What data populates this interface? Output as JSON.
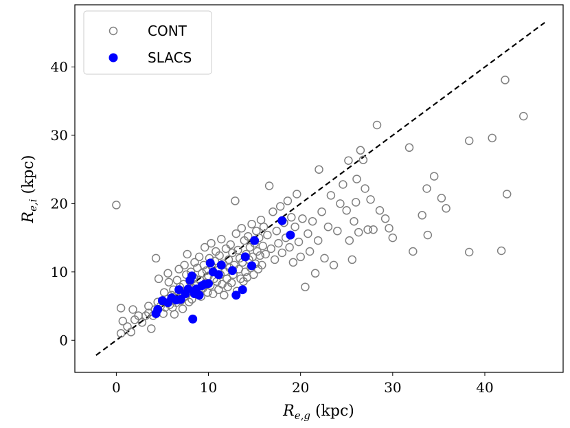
{
  "chart_data": {
    "type": "scatter",
    "xlabel": {
      "symbol": "R",
      "sub": "e,g",
      "unit": " (kpc)"
    },
    "ylabel": {
      "symbol": "R",
      "sub": "e,i",
      "unit": " (kpc)"
    },
    "xlim": [
      -4.5,
      48.5
    ],
    "ylim": [
      -4.7,
      49.1
    ],
    "x_ticks": [
      0,
      10,
      20,
      30,
      40
    ],
    "y_ticks": [
      0,
      10,
      20,
      30,
      40
    ],
    "grid": false,
    "legend": {
      "position": "top-left",
      "entries": [
        {
          "label": "CONT",
          "marker": "open-circle",
          "color": "#808080"
        },
        {
          "label": "SLACS",
          "marker": "filled-circle",
          "color": "#0000ff"
        }
      ]
    },
    "reference_line": {
      "style": "dashed",
      "color": "#000000",
      "x": [
        -2.2,
        46.5
      ],
      "y": [
        -2.2,
        46.5
      ]
    },
    "series": [
      {
        "name": "CONT",
        "color": "#808080",
        "marker": "open-circle",
        "points": [
          [
            0.0,
            19.8
          ],
          [
            0.5,
            1.0
          ],
          [
            0.7,
            2.8
          ],
          [
            0.5,
            4.7
          ],
          [
            1.2,
            2.0
          ],
          [
            1.6,
            1.2
          ],
          [
            1.8,
            4.5
          ],
          [
            2.0,
            3.0
          ],
          [
            2.4,
            3.6
          ],
          [
            2.8,
            2.6
          ],
          [
            3.2,
            3.6
          ],
          [
            3.5,
            4.0
          ],
          [
            3.8,
            1.7
          ],
          [
            3.5,
            5.0
          ],
          [
            4.0,
            3.6
          ],
          [
            4.3,
            12.0
          ],
          [
            4.2,
            4.5
          ],
          [
            4.5,
            5.6
          ],
          [
            4.6,
            9.0
          ],
          [
            4.8,
            5.0
          ],
          [
            5.1,
            3.9
          ],
          [
            5.2,
            7.0
          ],
          [
            5.3,
            4.8
          ],
          [
            5.5,
            6.0
          ],
          [
            5.6,
            9.8
          ],
          [
            5.7,
            8.5
          ],
          [
            5.8,
            5.2
          ],
          [
            6.0,
            6.6
          ],
          [
            6.1,
            4.8
          ],
          [
            6.2,
            7.4
          ],
          [
            6.3,
            3.8
          ],
          [
            6.5,
            5.5
          ],
          [
            6.6,
            8.8
          ],
          [
            6.7,
            6.2
          ],
          [
            6.8,
            10.4
          ],
          [
            6.9,
            7.8
          ],
          [
            7.0,
            5.8
          ],
          [
            7.1,
            6.8
          ],
          [
            7.2,
            4.6
          ],
          [
            7.3,
            8.2
          ],
          [
            7.4,
            11.0
          ],
          [
            7.5,
            6.4
          ],
          [
            7.6,
            9.6
          ],
          [
            7.7,
            12.6
          ],
          [
            7.8,
            7.2
          ],
          [
            7.9,
            5.6
          ],
          [
            8.0,
            8.6
          ],
          [
            8.1,
            10.0
          ],
          [
            8.2,
            6.0
          ],
          [
            8.3,
            7.6
          ],
          [
            8.4,
            9.2
          ],
          [
            8.5,
            11.4
          ],
          [
            8.6,
            6.8
          ],
          [
            8.7,
            8.0
          ],
          [
            8.8,
            10.6
          ],
          [
            8.9,
            7.2
          ],
          [
            9.0,
            12.2
          ],
          [
            9.1,
            8.8
          ],
          [
            9.2,
            6.4
          ],
          [
            9.3,
            9.8
          ],
          [
            9.4,
            7.6
          ],
          [
            9.5,
            11.0
          ],
          [
            9.6,
            13.6
          ],
          [
            9.7,
            8.4
          ],
          [
            9.8,
            10.2
          ],
          [
            9.9,
            7.0
          ],
          [
            10.0,
            9.4
          ],
          [
            10.1,
            12.0
          ],
          [
            10.2,
            8.0
          ],
          [
            10.3,
            14.2
          ],
          [
            10.4,
            10.8
          ],
          [
            10.5,
            6.8
          ],
          [
            10.6,
            9.0
          ],
          [
            10.7,
            11.6
          ],
          [
            10.8,
            13.0
          ],
          [
            10.9,
            8.6
          ],
          [
            11.0,
            10.2
          ],
          [
            11.1,
            7.4
          ],
          [
            11.2,
            12.4
          ],
          [
            11.3,
            9.6
          ],
          [
            11.4,
            14.8
          ],
          [
            11.5,
            8.2
          ],
          [
            11.6,
            11.2
          ],
          [
            11.7,
            6.6
          ],
          [
            11.8,
            10.0
          ],
          [
            11.9,
            13.4
          ],
          [
            12.0,
            9.0
          ],
          [
            12.1,
            7.8
          ],
          [
            12.2,
            11.8
          ],
          [
            12.3,
            10.6
          ],
          [
            12.4,
            14.0
          ],
          [
            12.5,
            8.4
          ],
          [
            12.6,
            12.8
          ],
          [
            12.7,
            9.6
          ],
          [
            12.8,
            11.0
          ],
          [
            12.9,
            20.4
          ],
          [
            13.0,
            15.6
          ],
          [
            13.1,
            7.2
          ],
          [
            13.2,
            13.2
          ],
          [
            13.3,
            10.4
          ],
          [
            13.4,
            12.0
          ],
          [
            13.5,
            9.0
          ],
          [
            13.6,
            16.4
          ],
          [
            13.7,
            11.4
          ],
          [
            13.8,
            8.6
          ],
          [
            13.9,
            14.6
          ],
          [
            14.0,
            10.0
          ],
          [
            14.1,
            12.6
          ],
          [
            14.2,
            9.2
          ],
          [
            14.3,
            15.2
          ],
          [
            14.4,
            11.8
          ],
          [
            14.5,
            13.6
          ],
          [
            14.6,
            10.6
          ],
          [
            14.7,
            17.0
          ],
          [
            14.8,
            12.2
          ],
          [
            14.9,
            9.6
          ],
          [
            15.0,
            14.2
          ],
          [
            15.1,
            11.2
          ],
          [
            15.2,
            16.0
          ],
          [
            15.3,
            13.0
          ],
          [
            15.4,
            10.4
          ],
          [
            15.5,
            15.0
          ],
          [
            15.6,
            12.4
          ],
          [
            15.7,
            17.6
          ],
          [
            15.8,
            11.0
          ],
          [
            15.9,
            13.8
          ],
          [
            16.0,
            16.6
          ],
          [
            16.2,
            12.6
          ],
          [
            16.4,
            15.4
          ],
          [
            16.6,
            22.6
          ],
          [
            16.8,
            13.4
          ],
          [
            17.0,
            18.8
          ],
          [
            17.2,
            11.8
          ],
          [
            17.4,
            16.0
          ],
          [
            17.6,
            14.2
          ],
          [
            17.8,
            19.6
          ],
          [
            18.0,
            12.8
          ],
          [
            18.2,
            17.2
          ],
          [
            18.4,
            15.0
          ],
          [
            18.6,
            20.4
          ],
          [
            18.8,
            13.6
          ],
          [
            19.0,
            18.0
          ],
          [
            19.2,
            11.4
          ],
          [
            19.4,
            16.6
          ],
          [
            19.6,
            21.4
          ],
          [
            19.8,
            14.4
          ],
          [
            20.0,
            12.2
          ],
          [
            20.2,
            17.8
          ],
          [
            20.5,
            7.8
          ],
          [
            20.8,
            15.6
          ],
          [
            21.0,
            13.0
          ],
          [
            21.3,
            17.4
          ],
          [
            21.6,
            9.8
          ],
          [
            21.9,
            14.6
          ],
          [
            22.0,
            25.0
          ],
          [
            22.3,
            18.8
          ],
          [
            22.6,
            12.0
          ],
          [
            23.0,
            16.6
          ],
          [
            23.3,
            21.2
          ],
          [
            23.6,
            11.0
          ],
          [
            24.0,
            16.0
          ],
          [
            24.3,
            20.0
          ],
          [
            24.6,
            22.8
          ],
          [
            25.0,
            19.0
          ],
          [
            25.2,
            26.3
          ],
          [
            25.3,
            14.6
          ],
          [
            25.6,
            11.8
          ],
          [
            25.8,
            17.4
          ],
          [
            26.0,
            20.2
          ],
          [
            26.1,
            23.6
          ],
          [
            26.3,
            15.8
          ],
          [
            26.5,
            27.8
          ],
          [
            26.8,
            26.4
          ],
          [
            27.0,
            22.2
          ],
          [
            27.3,
            16.2
          ],
          [
            27.6,
            20.6
          ],
          [
            27.9,
            16.2
          ],
          [
            28.3,
            31.5
          ],
          [
            28.6,
            19.0
          ],
          [
            29.2,
            17.8
          ],
          [
            29.6,
            16.4
          ],
          [
            30.0,
            15.0
          ],
          [
            31.8,
            28.2
          ],
          [
            32.2,
            13.0
          ],
          [
            33.2,
            18.3
          ],
          [
            33.7,
            22.2
          ],
          [
            33.8,
            15.4
          ],
          [
            34.5,
            24.0
          ],
          [
            35.3,
            20.8
          ],
          [
            35.8,
            19.3
          ],
          [
            38.3,
            29.2
          ],
          [
            38.3,
            12.9
          ],
          [
            40.8,
            29.6
          ],
          [
            41.8,
            13.1
          ],
          [
            42.2,
            38.1
          ],
          [
            42.4,
            21.4
          ],
          [
            44.2,
            32.8
          ]
        ]
      },
      {
        "name": "SLACS",
        "color": "#0000ff",
        "marker": "filled-circle",
        "points": [
          [
            4.3,
            3.9
          ],
          [
            4.5,
            4.5
          ],
          [
            5.0,
            5.8
          ],
          [
            5.6,
            5.5
          ],
          [
            6.0,
            6.2
          ],
          [
            6.5,
            5.9
          ],
          [
            6.8,
            7.4
          ],
          [
            7.0,
            6.0
          ],
          [
            7.5,
            6.8
          ],
          [
            7.8,
            7.5
          ],
          [
            8.0,
            8.8
          ],
          [
            8.2,
            9.4
          ],
          [
            8.3,
            3.1
          ],
          [
            8.5,
            6.8
          ],
          [
            8.7,
            7.5
          ],
          [
            9.0,
            6.6
          ],
          [
            9.3,
            8.0
          ],
          [
            9.6,
            8.2
          ],
          [
            10.0,
            8.3
          ],
          [
            10.2,
            11.3
          ],
          [
            10.5,
            10.0
          ],
          [
            11.1,
            9.6
          ],
          [
            11.4,
            11.0
          ],
          [
            12.6,
            10.2
          ],
          [
            13.0,
            6.6
          ],
          [
            13.7,
            7.4
          ],
          [
            14.0,
            12.2
          ],
          [
            14.7,
            10.9
          ],
          [
            15.0,
            14.6
          ],
          [
            18.0,
            17.5
          ],
          [
            18.9,
            15.4
          ]
        ]
      }
    ]
  }
}
